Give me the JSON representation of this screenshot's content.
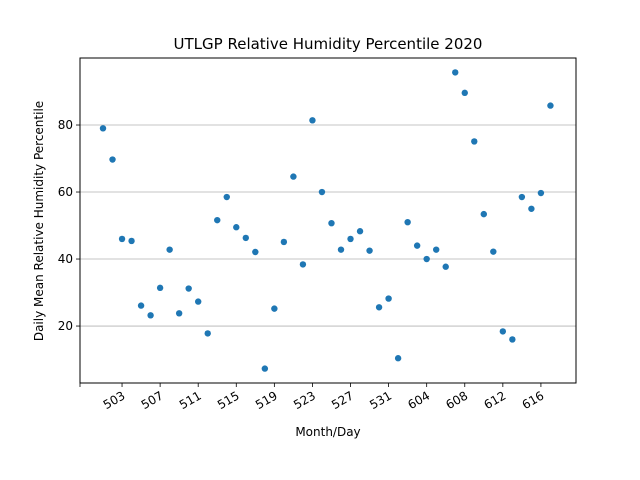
{
  "chart_data": {
    "type": "scatter",
    "title": "UTLGP Relative Humidity Percentile 2020",
    "xlabel": "Month/Day",
    "ylabel": "Daily Mean Relative Humidity Percentile",
    "x": [
      "501",
      "502",
      "503",
      "504",
      "505",
      "506",
      "507",
      "508",
      "509",
      "510",
      "511",
      "512",
      "513",
      "514",
      "515",
      "516",
      "517",
      "518",
      "519",
      "520",
      "521",
      "522",
      "523",
      "524",
      "525",
      "526",
      "527",
      "528",
      "529",
      "530",
      "531",
      "601",
      "602",
      "603",
      "604",
      "605",
      "606",
      "607",
      "608",
      "609",
      "610",
      "611",
      "612",
      "613",
      "614",
      "615",
      "616",
      "617"
    ],
    "y": [
      79,
      69.7,
      46,
      45.4,
      26.1,
      23.2,
      31.4,
      42.8,
      23.8,
      31.2,
      27.3,
      17.8,
      51.6,
      58.5,
      49.5,
      46.3,
      42.1,
      7.3,
      25.2,
      45.1,
      64.6,
      38.4,
      81.4,
      60,
      50.7,
      42.8,
      46,
      48.3,
      42.5,
      25.6,
      28.2,
      10.4,
      51,
      44,
      40,
      42.8,
      37.7,
      95.7,
      89.6,
      75.1,
      53.4,
      42.2,
      18.4,
      16,
      58.5,
      55,
      59.7,
      85.8
    ],
    "xticks": [
      "503",
      "507",
      "511",
      "515",
      "519",
      "523",
      "527",
      "531",
      "604",
      "608",
      "612",
      "616"
    ],
    "yticks": [
      20,
      40,
      60,
      80
    ],
    "ylim": [
      3,
      100
    ],
    "grid": "y-only",
    "marker_color": "#1f77b4"
  }
}
